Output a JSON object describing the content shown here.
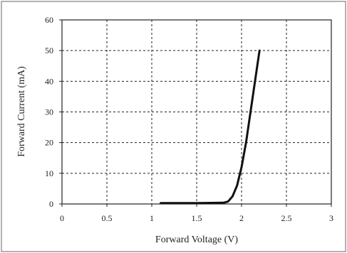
{
  "chart_data": {
    "type": "line",
    "title": "",
    "xlabel": "Forward Voltage (V)",
    "ylabel": "Forward Current (mA)",
    "xlim": [
      0,
      3
    ],
    "ylim": [
      0,
      60
    ],
    "x_ticks": [
      0,
      0.5,
      1,
      1.5,
      2,
      2.5,
      3
    ],
    "x_tick_labels": [
      "0",
      "0.5",
      "1",
      "1.5",
      "2",
      "2.5",
      "3"
    ],
    "y_ticks": [
      0,
      10,
      20,
      30,
      40,
      50,
      60
    ],
    "y_tick_labels": [
      "0",
      "10",
      "20",
      "30",
      "40",
      "50",
      "60"
    ],
    "grid": true,
    "grid_style": "dashed",
    "legend": "none",
    "series": [
      {
        "color": "#111111",
        "points": [
          {
            "x": 1.1,
            "y": 0.3
          },
          {
            "x": 1.5,
            "y": 0.3
          },
          {
            "x": 1.8,
            "y": 0.4
          },
          {
            "x": 1.85,
            "y": 0.8
          },
          {
            "x": 1.9,
            "y": 2.5
          },
          {
            "x": 1.95,
            "y": 6
          },
          {
            "x": 2.0,
            "y": 12
          },
          {
            "x": 2.05,
            "y": 20
          },
          {
            "x": 2.1,
            "y": 30
          },
          {
            "x": 2.15,
            "y": 40
          },
          {
            "x": 2.2,
            "y": 50
          }
        ]
      }
    ]
  }
}
